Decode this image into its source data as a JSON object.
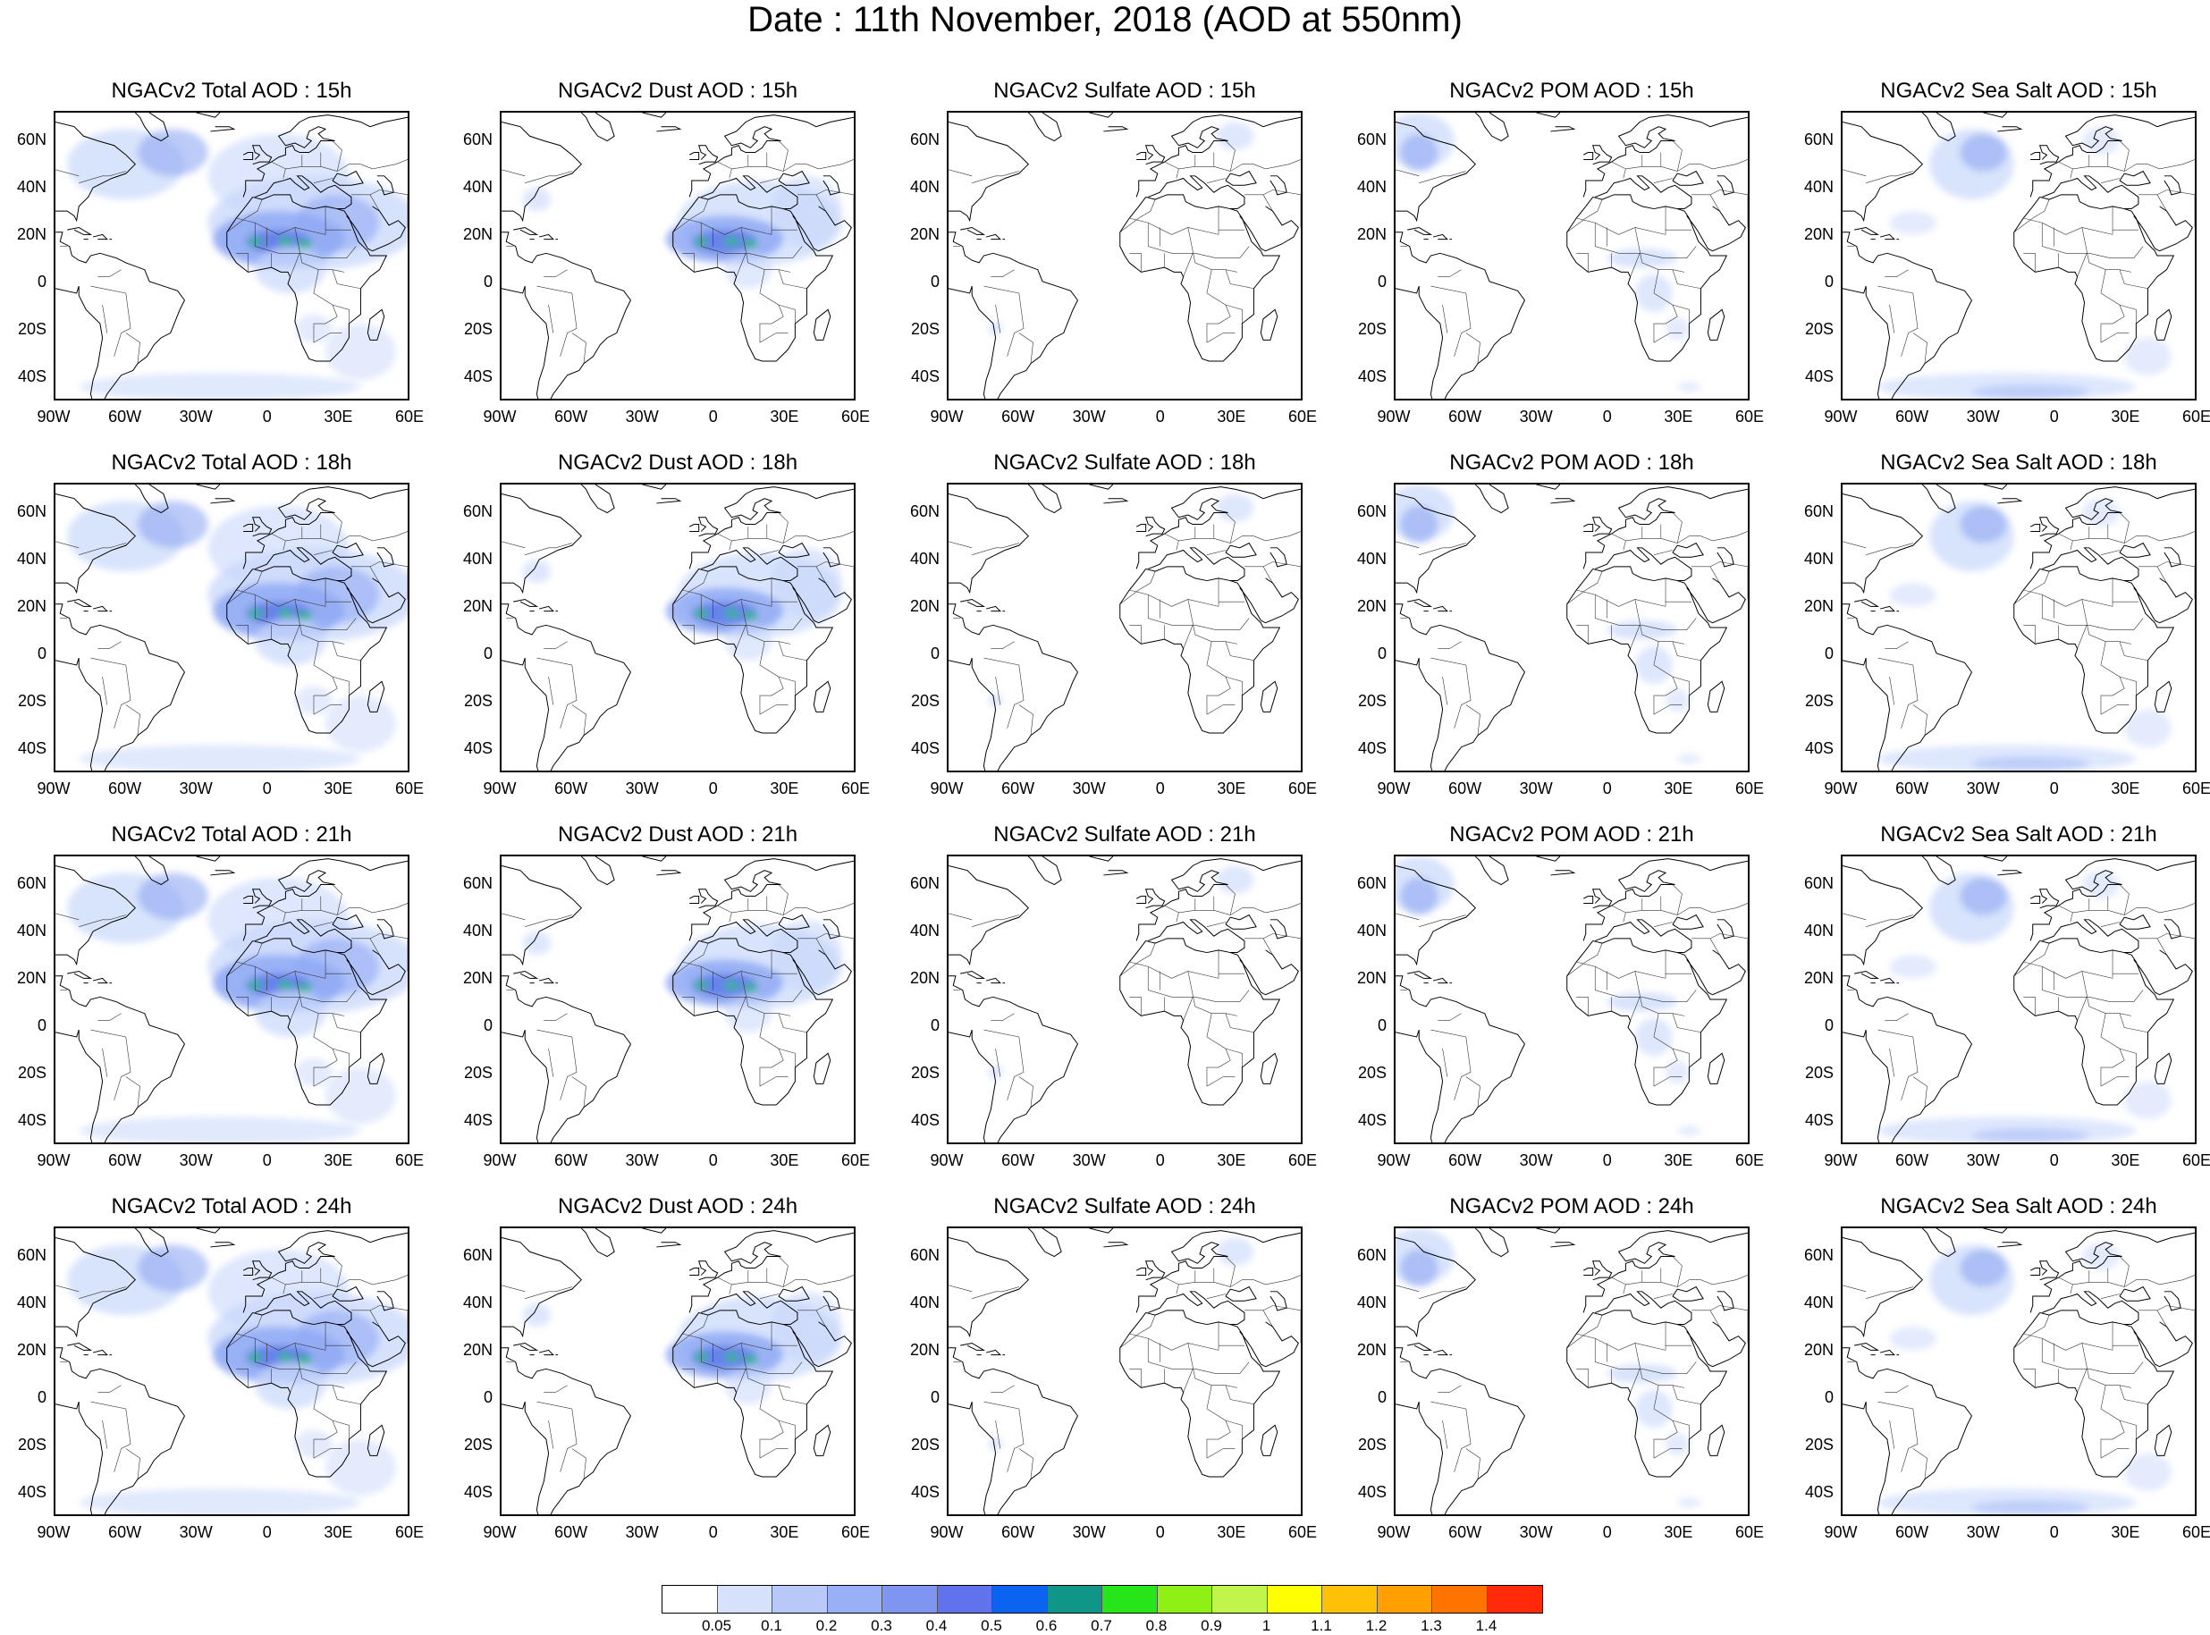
{
  "title": "Date : 11th November, 2018 (AOD at 550nm)",
  "colors": {
    "ocean_background": "#ffffff",
    "coastline": "#000000",
    "aod_light": "#c8d7fb",
    "aod_medium": "#8fa9f4",
    "aod_high": "#5f7bea",
    "aod_peak": "#2fb88a"
  },
  "columns": [
    "Total",
    "Dust",
    "Sulfate",
    "POM",
    "Sea Salt"
  ],
  "hours": [
    "15h",
    "18h",
    "21h",
    "24h"
  ],
  "panels": [
    {
      "label": "NGACv2 Total AOD : 15h",
      "species": "total",
      "hour": "15h"
    },
    {
      "label": "NGACv2 Dust AOD : 15h",
      "species": "dust",
      "hour": "15h"
    },
    {
      "label": "NGACv2 Sulfate AOD : 15h",
      "species": "sulfate",
      "hour": "15h"
    },
    {
      "label": "NGACv2 POM AOD : 15h",
      "species": "pom",
      "hour": "15h"
    },
    {
      "label": "NGACv2 Sea Salt AOD : 15h",
      "species": "seasalt",
      "hour": "15h"
    },
    {
      "label": "NGACv2 Total AOD : 18h",
      "species": "total",
      "hour": "18h"
    },
    {
      "label": "NGACv2 Dust AOD : 18h",
      "species": "dust",
      "hour": "18h"
    },
    {
      "label": "NGACv2 Sulfate AOD : 18h",
      "species": "sulfate",
      "hour": "18h"
    },
    {
      "label": "NGACv2 POM AOD : 18h",
      "species": "pom",
      "hour": "18h"
    },
    {
      "label": "NGACv2 Sea Salt AOD : 18h",
      "species": "seasalt",
      "hour": "18h"
    },
    {
      "label": "NGACv2 Total AOD : 21h",
      "species": "total",
      "hour": "21h"
    },
    {
      "label": "NGACv2 Dust AOD : 21h",
      "species": "dust",
      "hour": "21h"
    },
    {
      "label": "NGACv2 Sulfate AOD : 21h",
      "species": "sulfate",
      "hour": "21h"
    },
    {
      "label": "NGACv2 POM AOD : 21h",
      "species": "pom",
      "hour": "21h"
    },
    {
      "label": "NGACv2 Sea Salt AOD : 21h",
      "species": "seasalt",
      "hour": "21h"
    },
    {
      "label": "NGACv2 Total AOD : 24h",
      "species": "total",
      "hour": "24h"
    },
    {
      "label": "NGACv2 Dust AOD : 24h",
      "species": "dust",
      "hour": "24h"
    },
    {
      "label": "NGACv2 Sulfate AOD : 24h",
      "species": "sulfate",
      "hour": "24h"
    },
    {
      "label": "NGACv2 POM AOD : 24h",
      "species": "pom",
      "hour": "24h"
    },
    {
      "label": "NGACv2 Sea Salt  AOD : 24h",
      "species": "seasalt",
      "hour": "24h"
    }
  ],
  "map_extent": {
    "lon_min": -90,
    "lon_max": 60,
    "lat_min": -50,
    "lat_max": 72
  },
  "lat_ticks": [
    {
      "value": 60,
      "label": "60N"
    },
    {
      "value": 40,
      "label": "40N"
    },
    {
      "value": 20,
      "label": "20N"
    },
    {
      "value": 0,
      "label": "0"
    },
    {
      "value": -20,
      "label": "20S"
    },
    {
      "value": -40,
      "label": "40S"
    }
  ],
  "lon_ticks": [
    {
      "value": -90,
      "label": "90W"
    },
    {
      "value": -60,
      "label": "60W"
    },
    {
      "value": -30,
      "label": "30W"
    },
    {
      "value": 0,
      "label": "0"
    },
    {
      "value": 30,
      "label": "30E"
    },
    {
      "value": 60,
      "label": "60E"
    }
  ],
  "colorbar": {
    "colors": [
      "#ffffff",
      "#d6e1fc",
      "#b8c9f9",
      "#98b0f6",
      "#7f95f2",
      "#6173ec",
      "#0a64f0",
      "#0f9688",
      "#26e61a",
      "#8ef014",
      "#c2f54c",
      "#ffff00",
      "#ffc107",
      "#ffa000",
      "#ff7400",
      "#ff2a0a"
    ],
    "labels": [
      "0.05",
      "0.1",
      "0.2",
      "0.3",
      "0.4",
      "0.5",
      "0.6",
      "0.7",
      "0.8",
      "0.9",
      "1",
      "1.1",
      "1.2",
      "1.3",
      "1.4"
    ]
  }
}
